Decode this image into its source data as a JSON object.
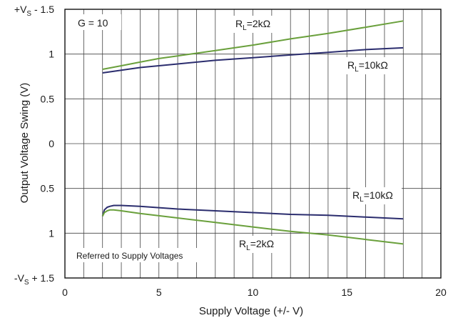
{
  "chart_data": {
    "type": "line",
    "xlabel": "Supply Voltage (+/- V)",
    "ylabel": "Output Voltage Swing (V)",
    "xlim": [
      0,
      20
    ],
    "ylim": [
      -1.5,
      1.5
    ],
    "x_ticks": [
      {
        "v": 0,
        "label": "0"
      },
      {
        "v": 5,
        "label": "5"
      },
      {
        "v": 10,
        "label": "10"
      },
      {
        "v": 15,
        "label": "15"
      },
      {
        "v": 20,
        "label": "20"
      }
    ],
    "y_ticks": [
      {
        "v": 1.5,
        "label": "+V",
        "sub": "S",
        "rest": " - 1.5"
      },
      {
        "v": 1.0,
        "label": "1",
        "sub": "",
        "rest": ""
      },
      {
        "v": 0.5,
        "label": "0.5",
        "sub": "",
        "rest": ""
      },
      {
        "v": 0.0,
        "label": "0",
        "sub": "",
        "rest": ""
      },
      {
        "v": -0.5,
        "label": "0.5",
        "sub": "",
        "rest": ""
      },
      {
        "v": -1.0,
        "label": "1",
        "sub": "",
        "rest": ""
      },
      {
        "v": -1.5,
        "label": "-V",
        "sub": "S",
        "rest": " + 1.5"
      }
    ],
    "grid": true,
    "colors": {
      "rl2k": "#6aa03c",
      "rl10k": "#2b2d6e",
      "grid": "#444444"
    },
    "series": [
      {
        "key": "rl2k_top",
        "color": "rl2k",
        "x": [
          2,
          3,
          4,
          5,
          6,
          8,
          10,
          12,
          14,
          16,
          18
        ],
        "y": [
          0.83,
          0.87,
          0.91,
          0.95,
          0.98,
          1.04,
          1.1,
          1.17,
          1.23,
          1.3,
          1.37
        ]
      },
      {
        "key": "rl10k_top",
        "color": "rl10k",
        "x": [
          2,
          3,
          4,
          5,
          6,
          8,
          10,
          12,
          14,
          16,
          18
        ],
        "y": [
          0.79,
          0.82,
          0.85,
          0.87,
          0.89,
          0.93,
          0.96,
          0.99,
          1.02,
          1.05,
          1.07
        ]
      },
      {
        "key": "rl10k_bot",
        "color": "rl10k",
        "x": [
          2,
          2.1,
          2.25,
          2.4,
          2.6,
          3,
          4,
          6,
          8,
          10,
          12,
          14,
          16,
          18
        ],
        "y": [
          -0.81,
          -0.74,
          -0.71,
          -0.7,
          -0.69,
          -0.69,
          -0.7,
          -0.73,
          -0.75,
          -0.77,
          -0.79,
          -0.8,
          -0.82,
          -0.84
        ]
      },
      {
        "key": "rl2k_bot",
        "color": "rl2k",
        "x": [
          2,
          2.1,
          2.25,
          2.4,
          2.6,
          3,
          4,
          6,
          8,
          10,
          12,
          14,
          16,
          18
        ],
        "y": [
          -0.81,
          -0.77,
          -0.75,
          -0.74,
          -0.74,
          -0.75,
          -0.78,
          -0.83,
          -0.88,
          -0.93,
          -0.98,
          -1.02,
          -1.07,
          -1.12
        ]
      }
    ],
    "annotations": {
      "gain": "G = 10",
      "rl2k_top": {
        "main": "R",
        "sub": "L",
        "rest": "=2kΩ"
      },
      "rl10k_top": {
        "main": "R",
        "sub": "L",
        "rest": "=10kΩ"
      },
      "rl10k_bot": {
        "main": "R",
        "sub": "L",
        "rest": "=10kΩ"
      },
      "rl2k_bot": {
        "main": "R",
        "sub": "L",
        "rest": "=2kΩ"
      },
      "note": "Referred to Supply Voltages"
    }
  }
}
